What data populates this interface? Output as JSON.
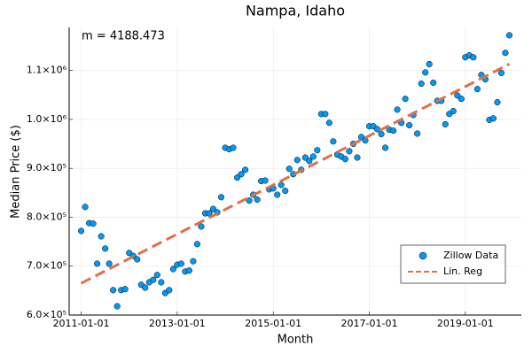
{
  "chart_data": {
    "type": "scatter",
    "title": "Nampa, Idaho",
    "xlabel": "Month",
    "ylabel": "Median Price ($)",
    "annotation": "m = 4188.473",
    "xlim": [
      "2010-10-01",
      "2020-03-01"
    ],
    "xticks": [
      "2011-01-01",
      "2013-01-01",
      "2015-01-01",
      "2017-01-01",
      "2019-01-01"
    ],
    "ylim": [
      600000,
      1188000
    ],
    "yticks": [
      {
        "value": 600000,
        "label": "6.0×10⁵"
      },
      {
        "value": 700000,
        "label": "7.0×10⁵"
      },
      {
        "value": 800000,
        "label": "8.0×10⁵"
      },
      {
        "value": 900000,
        "label": "9.0×10⁵"
      },
      {
        "value": 1000000,
        "label": "1.0×10⁶"
      },
      {
        "value": 1100000,
        "label": "1.1×10⁶"
      }
    ],
    "grid": true,
    "legend": "bottom-right",
    "series": [
      {
        "name": "Zillow Data",
        "type": "scatter",
        "color": "#009af9",
        "x": [
          "2011-01-01",
          "2011-02-01",
          "2011-03-01",
          "2011-04-01",
          "2011-05-01",
          "2011-06-01",
          "2011-07-01",
          "2011-08-01",
          "2011-09-01",
          "2011-10-01",
          "2011-11-01",
          "2011-12-01",
          "2012-01-01",
          "2012-02-01",
          "2012-03-01",
          "2012-04-01",
          "2012-05-01",
          "2012-06-01",
          "2012-07-01",
          "2012-08-01",
          "2012-09-01",
          "2012-10-01",
          "2012-11-01",
          "2012-12-01",
          "2013-01-01",
          "2013-02-01",
          "2013-03-01",
          "2013-04-01",
          "2013-05-01",
          "2013-06-01",
          "2013-07-01",
          "2013-08-01",
          "2013-09-01",
          "2013-10-01",
          "2013-11-01",
          "2013-12-01",
          "2014-01-01",
          "2014-02-01",
          "2014-03-01",
          "2014-04-01",
          "2014-05-01",
          "2014-06-01",
          "2014-07-01",
          "2014-08-01",
          "2014-09-01",
          "2014-10-01",
          "2014-11-01",
          "2014-12-01",
          "2015-01-01",
          "2015-02-01",
          "2015-03-01",
          "2015-04-01",
          "2015-05-01",
          "2015-06-01",
          "2015-07-01",
          "2015-08-01",
          "2015-09-01",
          "2015-10-01",
          "2015-11-01",
          "2015-12-01",
          "2016-01-01",
          "2016-02-01",
          "2016-03-01",
          "2016-04-01",
          "2016-05-01",
          "2016-06-01",
          "2016-07-01",
          "2016-08-01",
          "2016-09-01",
          "2016-10-01",
          "2016-11-01",
          "2016-12-01",
          "2017-01-01",
          "2017-02-01",
          "2017-03-01",
          "2017-04-01",
          "2017-05-01",
          "2017-06-01",
          "2017-07-01",
          "2017-08-01",
          "2017-09-01",
          "2017-10-01",
          "2017-11-01",
          "2017-12-01",
          "2018-01-01",
          "2018-02-01",
          "2018-03-01",
          "2018-04-01",
          "2018-05-01",
          "2018-06-01",
          "2018-07-01",
          "2018-08-01",
          "2018-09-01",
          "2018-10-01",
          "2018-11-01",
          "2018-12-01",
          "2019-01-01",
          "2019-02-01",
          "2019-03-01",
          "2019-04-01",
          "2019-05-01",
          "2019-06-01",
          "2019-07-01",
          "2019-08-01",
          "2019-09-01",
          "2019-10-01",
          "2019-11-01",
          "2019-12-01"
        ],
        "values": [
          772000,
          821000,
          788000,
          787000,
          705000,
          761000,
          736000,
          705000,
          651000,
          618000,
          651000,
          653000,
          727000,
          721000,
          714000,
          662000,
          656000,
          667000,
          672000,
          682000,
          667000,
          645000,
          651000,
          694000,
          703000,
          705000,
          689000,
          691000,
          710000,
          745000,
          781000,
          808000,
          808000,
          817000,
          810000,
          841000,
          942000,
          939000,
          942000,
          881000,
          888000,
          897000,
          834000,
          846000,
          836000,
          874000,
          875000,
          857000,
          859000,
          846000,
          866000,
          854000,
          899000,
          888000,
          917000,
          897000,
          922000,
          915000,
          924000,
          937000,
          1011000,
          1011000,
          993000,
          955000,
          928000,
          924000,
          919000,
          935000,
          950000,
          922000,
          964000,
          957000,
          986000,
          986000,
          980000,
          970000,
          942000,
          979000,
          977000,
          1020000,
          993000,
          1042000,
          988000,
          1009000,
          971000,
          1073000,
          1096000,
          1113000,
          1075000,
          1038000,
          1038000,
          990000,
          1011000,
          1017000,
          1049000,
          1042000,
          1127000,
          1131000,
          1127000,
          1062000,
          1091000,
          1082000,
          999000,
          1002000,
          1035000,
          1095000,
          1136000,
          1172000
        ]
      },
      {
        "name": "Lin. Reg",
        "type": "line",
        "color": "#e26f46",
        "x": [
          "2011-01-01",
          "2019-12-01"
        ],
        "values": [
          665000,
          1113167
        ]
      }
    ]
  }
}
